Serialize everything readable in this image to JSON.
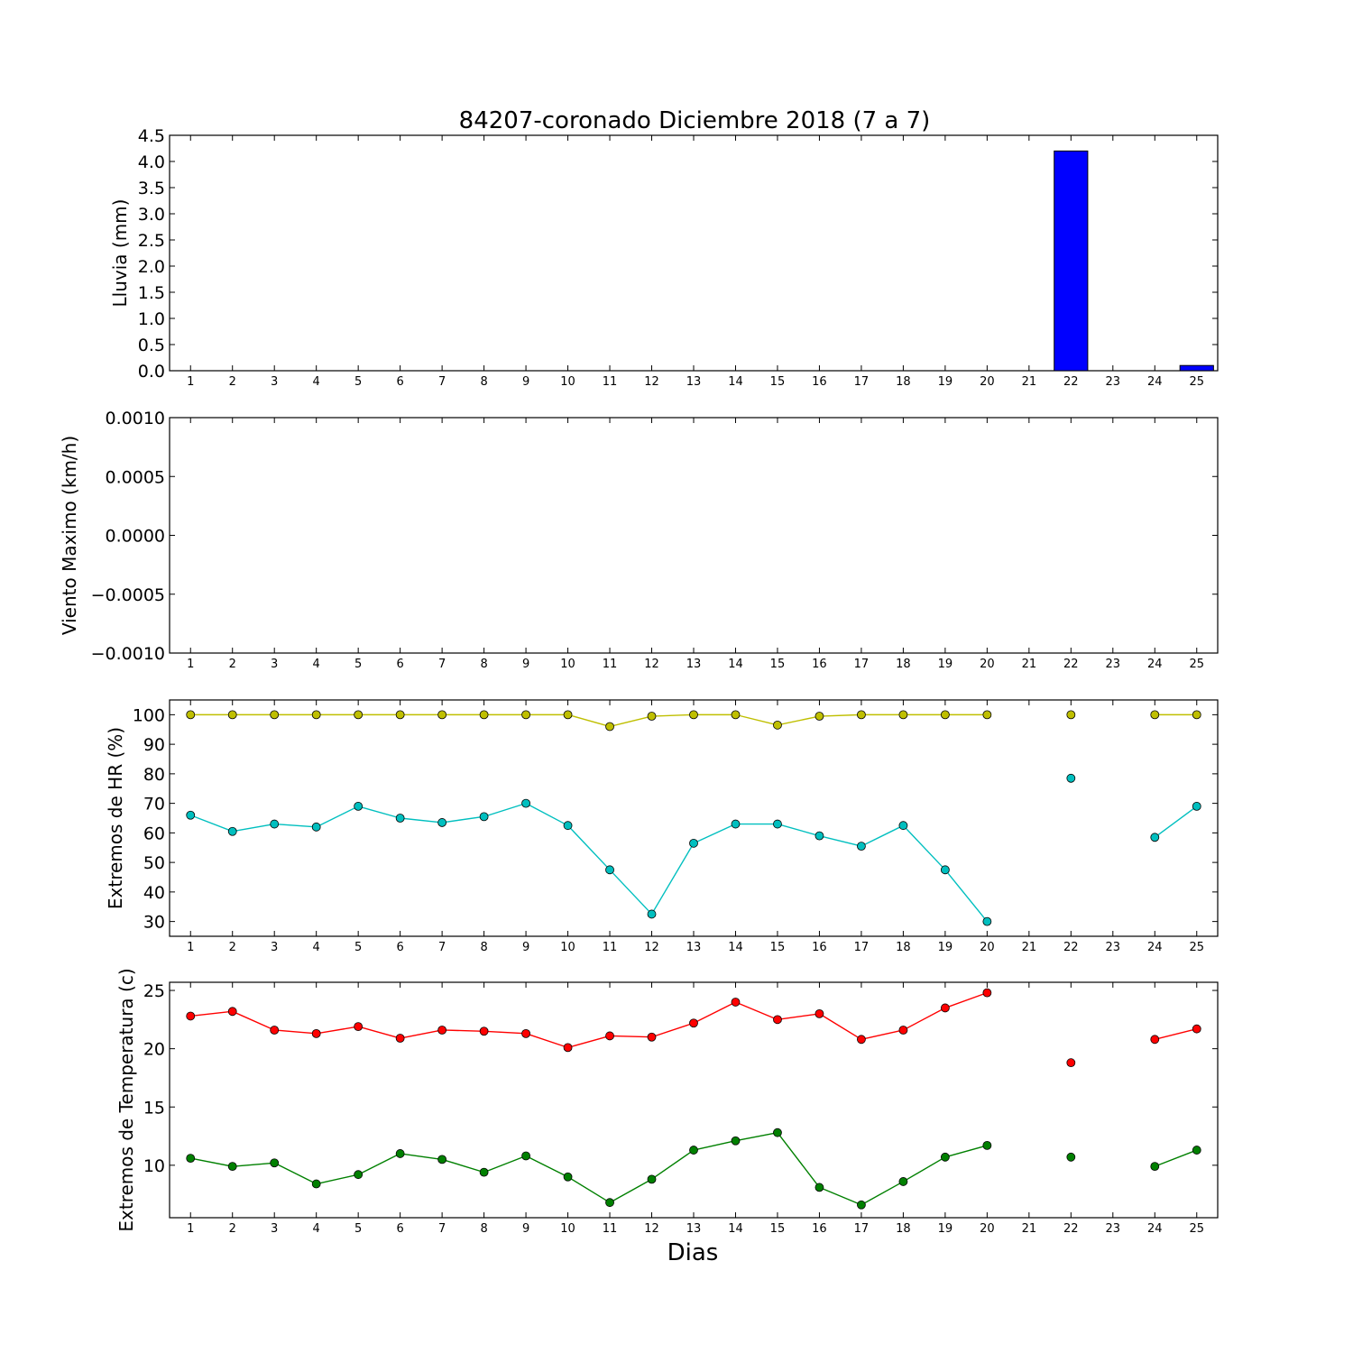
{
  "title": "84207-coronado Diciembre 2018  (7 a 7)",
  "xlabel": "Dias",
  "chart_data": [
    {
      "type": "bar",
      "ylabel": "Lluvia (mm)",
      "categories": [
        1,
        2,
        3,
        4,
        5,
        6,
        7,
        8,
        9,
        10,
        11,
        12,
        13,
        14,
        15,
        16,
        17,
        18,
        19,
        20,
        21,
        22,
        23,
        24,
        25
      ],
      "values": [
        0,
        0,
        0,
        0,
        0,
        0,
        0,
        0,
        0,
        0,
        0,
        0,
        0,
        0,
        0,
        0,
        0,
        0,
        0,
        0,
        null,
        4.2,
        null,
        0,
        0.1
      ],
      "ylim": [
        0,
        4.5
      ],
      "yticks": [
        "0.0",
        "0.5",
        "1.0",
        "1.5",
        "2.0",
        "2.5",
        "3.0",
        "3.5",
        "4.0",
        "4.5"
      ],
      "color": "#0000ff"
    },
    {
      "type": "line",
      "ylabel": "Viento Maximo (km/h)",
      "categories": [
        1,
        2,
        3,
        4,
        5,
        6,
        7,
        8,
        9,
        10,
        11,
        12,
        13,
        14,
        15,
        16,
        17,
        18,
        19,
        20,
        21,
        22,
        23,
        24,
        25
      ],
      "series": [],
      "ylim": [
        -0.001,
        0.001
      ],
      "yticks": [
        "−0.0010",
        "−0.0005",
        "0.0000",
        "0.0005",
        "0.0010"
      ]
    },
    {
      "type": "line",
      "ylabel": "Extremos de HR (%)",
      "categories": [
        1,
        2,
        3,
        4,
        5,
        6,
        7,
        8,
        9,
        10,
        11,
        12,
        13,
        14,
        15,
        16,
        17,
        18,
        19,
        20,
        21,
        22,
        23,
        24,
        25
      ],
      "series": [
        {
          "color": "#bfbf00",
          "values": [
            100,
            100,
            100,
            100,
            100,
            100,
            100,
            100,
            100,
            100,
            96,
            99.5,
            100,
            100,
            96.5,
            99.5,
            100,
            100,
            100,
            100,
            null,
            100,
            null,
            100,
            100
          ]
        },
        {
          "color": "#00bfbf",
          "values": [
            66,
            60.5,
            63,
            62,
            69,
            65,
            63.5,
            65.5,
            70,
            62.5,
            47.5,
            32.5,
            56.5,
            63,
            63,
            59,
            55.5,
            62.5,
            47.5,
            30,
            null,
            78.5,
            null,
            58.5,
            69
          ]
        }
      ],
      "ylim": [
        25,
        105
      ],
      "yticks": [
        "30",
        "40",
        "50",
        "60",
        "70",
        "80",
        "90",
        "100"
      ]
    },
    {
      "type": "line",
      "ylabel": "Extremos de Temperatura (c)",
      "categories": [
        1,
        2,
        3,
        4,
        5,
        6,
        7,
        8,
        9,
        10,
        11,
        12,
        13,
        14,
        15,
        16,
        17,
        18,
        19,
        20,
        21,
        22,
        23,
        24,
        25
      ],
      "series": [
        {
          "color": "#ff0000",
          "values": [
            22.8,
            23.2,
            21.6,
            21.3,
            21.9,
            20.9,
            21.6,
            21.5,
            21.3,
            20.1,
            21.1,
            21.0,
            22.2,
            24.0,
            22.5,
            23.0,
            20.8,
            21.6,
            23.5,
            24.8,
            null,
            18.8,
            null,
            20.8,
            21.7
          ]
        },
        {
          "color": "#008000",
          "values": [
            10.6,
            9.9,
            10.2,
            8.4,
            9.2,
            11.0,
            10.5,
            9.4,
            10.8,
            9.0,
            6.8,
            8.8,
            11.3,
            12.1,
            12.8,
            8.1,
            6.6,
            8.6,
            10.7,
            11.7,
            null,
            10.7,
            null,
            9.9,
            11.3
          ]
        }
      ],
      "ylim": [
        5.5,
        25.7
      ],
      "yticks": [
        "10",
        "15",
        "20",
        "25"
      ]
    }
  ]
}
